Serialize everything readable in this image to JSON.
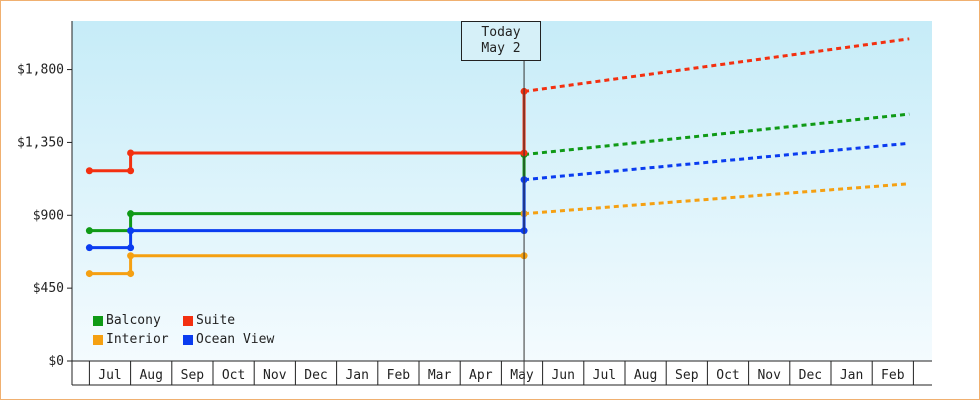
{
  "chart_data": {
    "type": "line",
    "y_ticks": [
      {
        "value": 0,
        "label": "$0"
      },
      {
        "value": 450,
        "label": "$450"
      },
      {
        "value": 900,
        "label": "$900"
      },
      {
        "value": 1350,
        "label": "$1,350"
      },
      {
        "value": 1800,
        "label": "$1,800"
      }
    ],
    "ylim": [
      0,
      2100
    ],
    "x_months": [
      "Jul",
      "Aug",
      "Sep",
      "Oct",
      "Nov",
      "Dec",
      "Jan",
      "Feb",
      "Mar",
      "Apr",
      "May",
      "Jun",
      "Jul",
      "Aug",
      "Sep",
      "Oct",
      "Nov",
      "Dec",
      "Jan",
      "Feb"
    ],
    "today_marker": {
      "line1": "Today",
      "line2": "May 2",
      "x": 10.05
    },
    "xlim": [
      -0.5,
      19.5
    ],
    "grid": false,
    "legend_position": "bottom-left",
    "series": [
      {
        "name": "Balcony",
        "color": "#0f9a16",
        "history": [
          [
            -0.5,
            805
          ],
          [
            0.5,
            805
          ],
          [
            0.5,
            910
          ],
          [
            10.05,
            910
          ],
          [
            10.05,
            1275
          ]
        ],
        "forecast": [
          [
            10.05,
            1275
          ],
          [
            19.4,
            1525
          ]
        ]
      },
      {
        "name": "Interior",
        "color": "#f5a012",
        "history": [
          [
            -0.5,
            540
          ],
          [
            0.5,
            540
          ],
          [
            0.5,
            650
          ],
          [
            10.05,
            650
          ]
        ],
        "forecast": [
          [
            10.05,
            910
          ],
          [
            19.4,
            1095
          ]
        ]
      },
      {
        "name": "Suite",
        "color": "#f33010",
        "history": [
          [
            -0.5,
            1175
          ],
          [
            0.5,
            1175
          ],
          [
            0.5,
            1285
          ],
          [
            10.05,
            1285
          ],
          [
            10.05,
            1665
          ]
        ],
        "forecast": [
          [
            10.05,
            1665
          ],
          [
            19.4,
            1990
          ]
        ]
      },
      {
        "name": "Ocean View",
        "color": "#0a3cf0",
        "history": [
          [
            -0.5,
            700
          ],
          [
            0.5,
            700
          ],
          [
            0.5,
            805
          ],
          [
            10.05,
            805
          ],
          [
            10.05,
            1120
          ]
        ],
        "forecast": [
          [
            10.05,
            1120
          ],
          [
            19.4,
            1345
          ]
        ]
      }
    ]
  }
}
